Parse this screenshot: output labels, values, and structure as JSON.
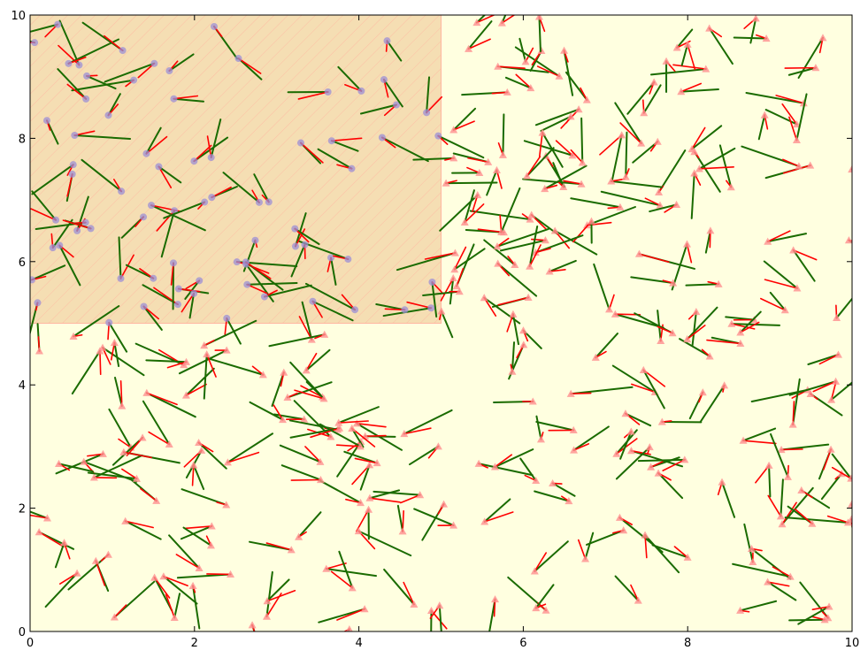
{
  "chart_data": {
    "type": "scatter",
    "title": "",
    "xlabel": "",
    "ylabel": "",
    "xlim": [
      0,
      10
    ],
    "ylim": [
      0,
      10
    ],
    "x_ticks": [
      "0",
      "2",
      "4",
      "6",
      "8",
      "10"
    ],
    "y_ticks": [
      "0",
      "2",
      "4",
      "6",
      "8",
      "10"
    ],
    "grid": false,
    "legend": "none",
    "background_color": "#ffffe0",
    "highlight_region": {
      "x": [
        0,
        5
      ],
      "y": [
        5,
        10
      ],
      "fill": "#f5deb3",
      "hatch": "#ffb6a0"
    },
    "inside_marker": {
      "shape": "circle",
      "color": "#9c8fd6"
    },
    "outside_marker": {
      "shape": "triangle",
      "color": "#ff8f8f"
    },
    "velocity_color": "#ff0000",
    "segment_color": "#1a6b00",
    "num_particles": 340,
    "segment_length": 0.55,
    "velocity_length": 0.35,
    "seed": 20
  }
}
